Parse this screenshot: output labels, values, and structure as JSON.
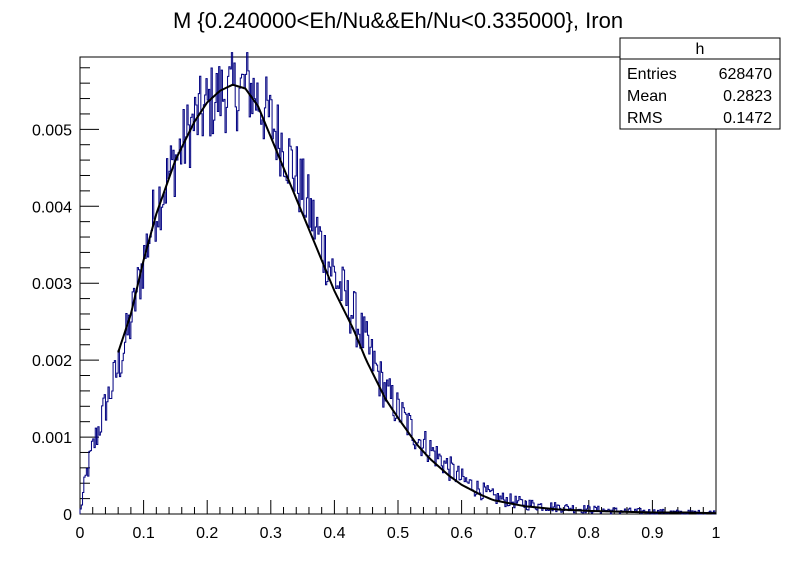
{
  "chart_data": {
    "type": "histogram",
    "title": "M {0.240000<Eh/Nu&&Eh/Nu<0.335000}, Iron",
    "xlabel": "",
    "ylabel": "",
    "xlim": [
      0,
      1
    ],
    "ylim": [
      0,
      0.00594
    ],
    "x_ticks": [
      0,
      0.1,
      0.2,
      0.3,
      0.4,
      0.5,
      0.6,
      0.7,
      0.8,
      0.9,
      1
    ],
    "x_tick_labels": [
      "0",
      "0.1",
      "0.2",
      "0.3",
      "0.4",
      "0.5",
      "0.6",
      "0.7",
      "0.8",
      "0.9",
      "1"
    ],
    "y_ticks": [
      0,
      0.001,
      0.002,
      0.003,
      0.004,
      0.005
    ],
    "y_tick_labels": [
      "0",
      "0.001",
      "0.002",
      "0.003",
      "0.004",
      "0.005"
    ],
    "histogram": {
      "name": "h",
      "color": "#000080",
      "bins": 500,
      "shape_points": [
        [
          0,
          0
        ],
        [
          0.01,
          0.0005
        ],
        [
          0.02,
          0.00085
        ],
        [
          0.04,
          0.0014
        ],
        [
          0.06,
          0.0019
        ],
        [
          0.08,
          0.0025
        ],
        [
          0.1,
          0.0033
        ],
        [
          0.12,
          0.004
        ],
        [
          0.15,
          0.0046
        ],
        [
          0.18,
          0.0051
        ],
        [
          0.2,
          0.0053
        ],
        [
          0.22,
          0.00545
        ],
        [
          0.25,
          0.0055
        ],
        [
          0.265,
          0.00557
        ],
        [
          0.28,
          0.0054
        ],
        [
          0.3,
          0.0051
        ],
        [
          0.32,
          0.0048
        ],
        [
          0.35,
          0.0042
        ],
        [
          0.38,
          0.0035
        ],
        [
          0.4,
          0.0031
        ],
        [
          0.43,
          0.0026
        ],
        [
          0.45,
          0.0022
        ],
        [
          0.48,
          0.0016
        ],
        [
          0.5,
          0.00135
        ],
        [
          0.53,
          0.001
        ],
        [
          0.55,
          0.00085
        ],
        [
          0.58,
          0.0006
        ],
        [
          0.6,
          0.00045
        ],
        [
          0.65,
          0.00022
        ],
        [
          0.7,
          0.00013
        ],
        [
          0.75,
          9e-05
        ],
        [
          0.8,
          6e-05
        ],
        [
          0.85,
          4e-05
        ],
        [
          0.9,
          3e-05
        ],
        [
          0.95,
          2e-05
        ],
        [
          1,
          2e-05
        ]
      ]
    },
    "fit": {
      "color": "#000000",
      "points": [
        [
          0.06,
          0.0021
        ],
        [
          0.08,
          0.0026
        ],
        [
          0.1,
          0.0033
        ],
        [
          0.12,
          0.0039
        ],
        [
          0.15,
          0.0046
        ],
        [
          0.18,
          0.0051
        ],
        [
          0.2,
          0.00535
        ],
        [
          0.22,
          0.0055
        ],
        [
          0.24,
          0.00558
        ],
        [
          0.26,
          0.00553
        ],
        [
          0.28,
          0.0053
        ],
        [
          0.3,
          0.0049
        ],
        [
          0.32,
          0.0045
        ],
        [
          0.35,
          0.0039
        ],
        [
          0.38,
          0.0033
        ],
        [
          0.4,
          0.0029
        ],
        [
          0.43,
          0.0024
        ],
        [
          0.45,
          0.002
        ],
        [
          0.48,
          0.0015
        ],
        [
          0.5,
          0.00125
        ],
        [
          0.53,
          0.0009
        ],
        [
          0.55,
          0.00072
        ],
        [
          0.58,
          0.0005
        ],
        [
          0.6,
          0.00038
        ],
        [
          0.63,
          0.00025
        ],
        [
          0.65,
          0.00018
        ],
        [
          0.7,
          0.0001
        ],
        [
          0.75,
          6e-05
        ],
        [
          0.8,
          4e-05
        ],
        [
          0.85,
          3e-05
        ],
        [
          0.9,
          2e-05
        ],
        [
          0.95,
          2e-05
        ],
        [
          1,
          1e-05
        ]
      ]
    },
    "stats_box": {
      "title": "h",
      "rows": [
        {
          "label": "Entries",
          "value": "628470"
        },
        {
          "label": "Mean",
          "value": "0.2823"
        },
        {
          "label": "RMS",
          "value": "0.1472"
        }
      ]
    }
  }
}
